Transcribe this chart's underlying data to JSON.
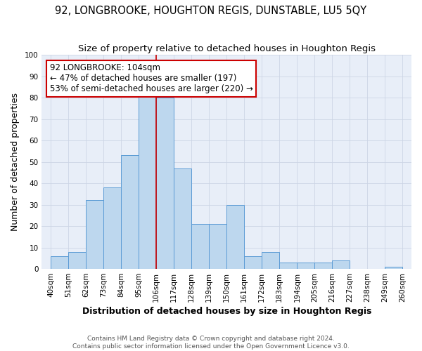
{
  "title1": "92, LONGBROOKE, HOUGHTON REGIS, DUNSTABLE, LU5 5QY",
  "title2": "Size of property relative to detached houses in Houghton Regis",
  "xlabel": "Distribution of detached houses by size in Houghton Regis",
  "ylabel": "Number of detached properties",
  "bin_labels": [
    "40sqm",
    "51sqm",
    "62sqm",
    "73sqm",
    "84sqm",
    "95sqm",
    "106sqm",
    "117sqm",
    "128sqm",
    "139sqm",
    "150sqm",
    "161sqm",
    "172sqm",
    "183sqm",
    "194sqm",
    "205sqm",
    "216sqm",
    "227sqm",
    "238sqm",
    "249sqm",
    "260sqm"
  ],
  "bin_edges": [
    40,
    51,
    62,
    73,
    84,
    95,
    106,
    117,
    128,
    139,
    150,
    161,
    172,
    183,
    194,
    205,
    216,
    227,
    238,
    249,
    260
  ],
  "counts": [
    6,
    8,
    32,
    38,
    53,
    81,
    80,
    47,
    21,
    21,
    30,
    6,
    8,
    3,
    3,
    3,
    4,
    0,
    0,
    1,
    0
  ],
  "bar_color": "#bdd7ee",
  "bar_edgecolor": "#5b9bd5",
  "property_line_x": 106,
  "property_line_color": "#cc0000",
  "annotation_text": "92 LONGBROOKE: 104sqm\n← 47% of detached houses are smaller (197)\n53% of semi-detached houses are larger (220) →",
  "annotation_box_color": "#ffffff",
  "annotation_box_edgecolor": "#cc0000",
  "ylim": [
    0,
    100
  ],
  "yticks": [
    0,
    10,
    20,
    30,
    40,
    50,
    60,
    70,
    80,
    90,
    100
  ],
  "grid_color": "#cdd5e5",
  "background_color": "#e8eef8",
  "footer1": "Contains HM Land Registry data © Crown copyright and database right 2024.",
  "footer2": "Contains public sector information licensed under the Open Government Licence v3.0.",
  "title_fontsize": 10.5,
  "subtitle_fontsize": 9.5,
  "axis_label_fontsize": 9,
  "tick_fontsize": 7.5,
  "annotation_fontsize": 8.5,
  "footer_fontsize": 6.5
}
